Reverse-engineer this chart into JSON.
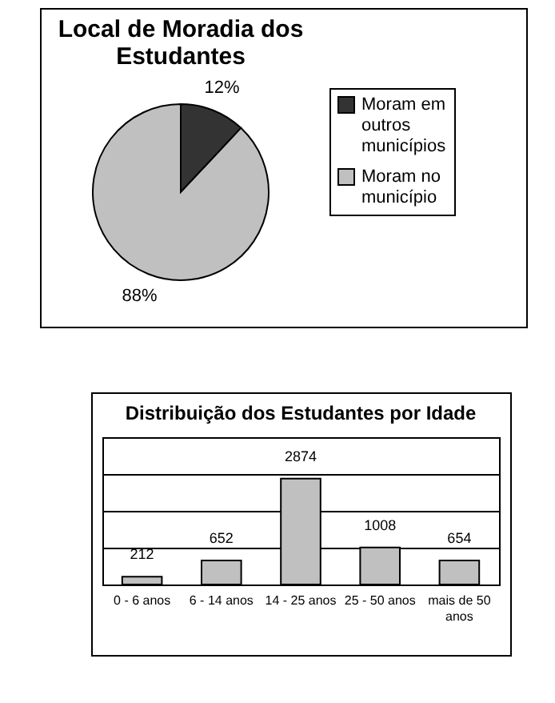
{
  "chart_data": [
    {
      "type": "pie",
      "title": "Local de Moradia dos Estudantes",
      "categories": [
        "Moram em outros municípios",
        "Moram no município"
      ],
      "values": [
        12,
        88
      ],
      "colors": [
        "#333333",
        "#c0c0c0"
      ],
      "value_labels": [
        "12%",
        "88%"
      ],
      "legend": "right"
    },
    {
      "type": "bar",
      "title": "Distribuição dos Estudantes por Idade",
      "categories": [
        "0 - 6 anos",
        "6 - 14 anos",
        "14 - 25 anos",
        "25 - 50 anos",
        "mais de 50 anos"
      ],
      "values": [
        212,
        652,
        2874,
        1008,
        654
      ],
      "color": "#c0c0c0",
      "data_labels": true,
      "ylim": [
        0,
        4000
      ],
      "tick_labels": "x",
      "grid": "y"
    }
  ]
}
